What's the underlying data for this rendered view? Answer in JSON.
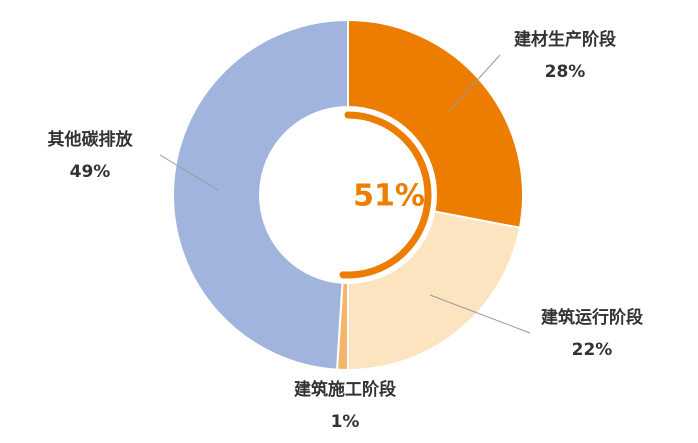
{
  "chart_data": {
    "type": "donut",
    "categories": [
      "建材生产阶段",
      "建筑运行阶段",
      "建筑施工阶段",
      "其他碳排放"
    ],
    "values": [
      28,
      22,
      1,
      49
    ],
    "value_labels": [
      "28%",
      "22%",
      "1%",
      "49%"
    ],
    "colors": [
      "#ED7D00",
      "#FCE4C0",
      "#F4B46A",
      "#A1B4DE"
    ],
    "center": {
      "value": 51,
      "label": "51%",
      "color": "#ED7D00"
    }
  }
}
